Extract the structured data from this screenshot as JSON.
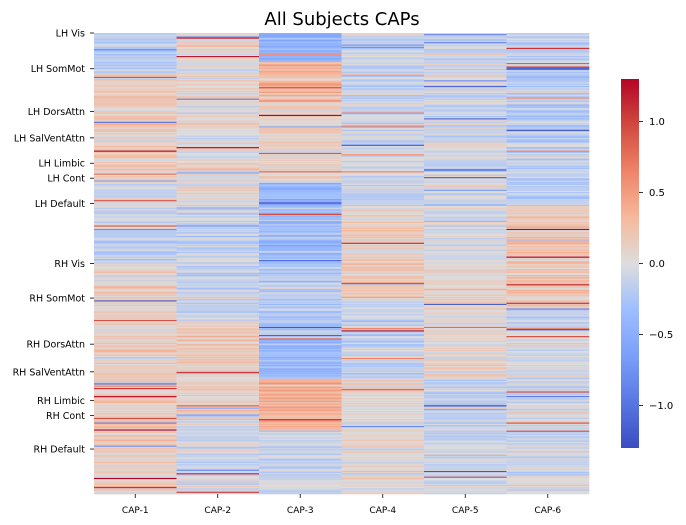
{
  "chart_data": {
    "type": "heatmap",
    "title": "All Subjects CAPs",
    "xlabel": "",
    "ylabel": "",
    "columns": [
      "CAP-1",
      "CAP-2",
      "CAP-3",
      "CAP-4",
      "CAP-5",
      "CAP-6"
    ],
    "row_count": 400,
    "row_labels": [
      {
        "label": "LH Vis",
        "row": 0
      },
      {
        "label": "LH SomMot",
        "row": 31
      },
      {
        "label": "LH DorsAttn",
        "row": 68
      },
      {
        "label": "LH SalVentAttn",
        "row": 91
      },
      {
        "label": "LH Limbic",
        "row": 113
      },
      {
        "label": "LH Cont",
        "row": 126
      },
      {
        "label": "LH Default",
        "row": 148
      },
      {
        "label": "RH Vis",
        "row": 200
      },
      {
        "label": "RH SomMot",
        "row": 230
      },
      {
        "label": "RH DorsAttn",
        "row": 270
      },
      {
        "label": "RH SalVentAttn",
        "row": 294
      },
      {
        "label": "RH Limbic",
        "row": 319
      },
      {
        "label": "RH Cont",
        "row": 332
      },
      {
        "label": "RH Default",
        "row": 361
      }
    ],
    "value_range": [
      -1.3,
      1.3
    ],
    "colormap": "coolwarm",
    "colorbar_ticks": [
      {
        "value": 1.0,
        "label": "1.0"
      },
      {
        "value": 0.5,
        "label": "0.5"
      },
      {
        "value": 0.0,
        "label": "0.0"
      },
      {
        "value": -0.5,
        "label": "−0.5"
      },
      {
        "value": -1.0,
        "label": "−1.0"
      }
    ],
    "column_profiles": [
      [
        {
          "from": 0,
          "to": 35,
          "mean": -0.2
        },
        {
          "from": 35,
          "to": 130,
          "mean": 0.15
        },
        {
          "from": 130,
          "to": 200,
          "mean": -0.1
        },
        {
          "from": 200,
          "to": 270,
          "mean": 0.1
        },
        {
          "from": 270,
          "to": 400,
          "mean": 0.15
        }
      ],
      [
        {
          "from": 0,
          "to": 150,
          "mean": 0.05
        },
        {
          "from": 150,
          "to": 250,
          "mean": -0.15
        },
        {
          "from": 250,
          "to": 330,
          "mean": 0.15
        },
        {
          "from": 330,
          "to": 400,
          "mean": -0.05
        }
      ],
      [
        {
          "from": 0,
          "to": 25,
          "mean": -0.45
        },
        {
          "from": 25,
          "to": 60,
          "mean": 0.3
        },
        {
          "from": 60,
          "to": 130,
          "mean": 0.1
        },
        {
          "from": 130,
          "to": 200,
          "mean": -0.35
        },
        {
          "from": 200,
          "to": 265,
          "mean": -0.2
        },
        {
          "from": 265,
          "to": 300,
          "mean": -0.35
        },
        {
          "from": 300,
          "to": 345,
          "mean": 0.35
        },
        {
          "from": 345,
          "to": 400,
          "mean": -0.1
        }
      ],
      [
        {
          "from": 0,
          "to": 150,
          "mean": -0.1
        },
        {
          "from": 150,
          "to": 230,
          "mean": 0.15
        },
        {
          "from": 230,
          "to": 300,
          "mean": -0.1
        },
        {
          "from": 300,
          "to": 400,
          "mean": 0.05
        }
      ],
      [
        {
          "from": 0,
          "to": 200,
          "mean": -0.05
        },
        {
          "from": 200,
          "to": 300,
          "mean": 0.05
        },
        {
          "from": 300,
          "to": 400,
          "mean": -0.1
        }
      ],
      [
        {
          "from": 0,
          "to": 150,
          "mean": -0.15
        },
        {
          "from": 150,
          "to": 240,
          "mean": 0.2
        },
        {
          "from": 240,
          "to": 400,
          "mean": -0.05
        }
      ]
    ],
    "grid": false,
    "legend": "colorbar-right"
  }
}
